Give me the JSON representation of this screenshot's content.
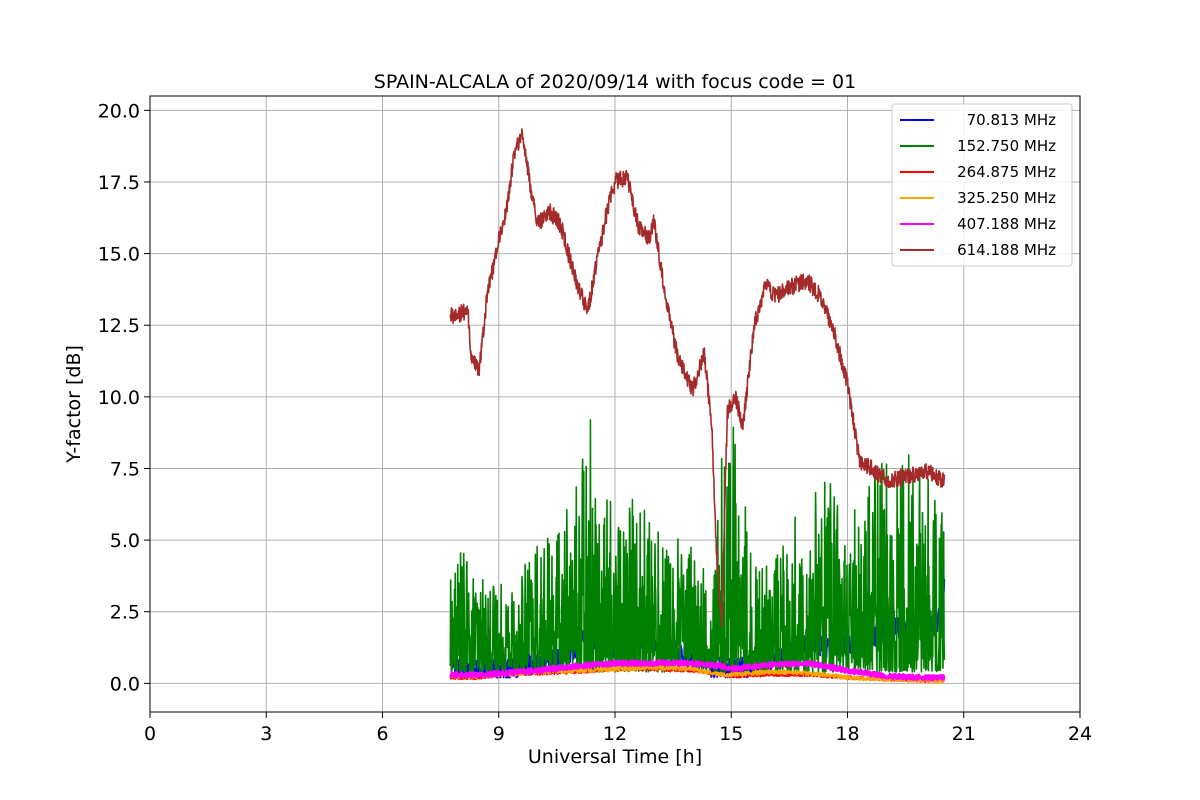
{
  "chart_data": {
    "type": "line",
    "title": "SPAIN-ALCALA of 2020/09/14 with focus code = 01",
    "xlabel": "Universal Time [h]",
    "ylabel": "Y-factor [dB]",
    "xlim": [
      0,
      24
    ],
    "ylim": [
      -1.0,
      20.5
    ],
    "xticks": [
      "0",
      "3",
      "6",
      "9",
      "12",
      "15",
      "18",
      "21",
      "24"
    ],
    "xtick_values": [
      0,
      3,
      6,
      9,
      12,
      15,
      18,
      21,
      24
    ],
    "yticks": [
      "0.0",
      "2.5",
      "5.0",
      "7.5",
      "10.0",
      "12.5",
      "15.0",
      "17.5",
      "20.0"
    ],
    "ytick_values": [
      0,
      2.5,
      5,
      7.5,
      10,
      12.5,
      15,
      17.5,
      20
    ],
    "grid": true,
    "legend_position": "top-right",
    "series": [
      {
        "name": "70.813 MHz",
        "color": "#0000ff",
        "x": [
          7.75,
          8.0,
          8.5,
          9.0,
          9.5,
          10.0,
          10.5,
          11.0,
          11.3,
          11.5,
          12.0,
          12.5,
          13.0,
          13.5,
          14.0,
          14.5,
          15.0,
          15.5,
          16.0,
          16.5,
          17.0,
          17.5,
          18.0,
          18.5,
          19.0,
          19.5,
          20.0,
          20.3,
          20.5
        ],
        "y": [
          1.0,
          0.5,
          0.4,
          0.5,
          0.6,
          0.7,
          0.8,
          1.2,
          2.0,
          1.5,
          1.2,
          1.8,
          1.3,
          1.1,
          0.9,
          0.6,
          0.5,
          0.6,
          0.8,
          1.0,
          1.5,
          1.2,
          1.3,
          1.6,
          1.8,
          2.0,
          2.2,
          2.0,
          3.5
        ],
        "noise": 0.4
      },
      {
        "name": "152.750 MHz",
        "color": "#008000",
        "x": [
          7.75,
          8.0,
          8.5,
          9.0,
          9.5,
          10.0,
          10.5,
          11.0,
          11.3,
          11.5,
          12.0,
          12.5,
          13.0,
          13.5,
          14.0,
          14.5,
          14.9,
          15.2,
          15.5,
          16.0,
          16.5,
          17.0,
          17.5,
          18.0,
          18.5,
          19.0,
          19.5,
          20.0,
          20.5
        ],
        "y": [
          1.5,
          2.0,
          1.5,
          1.5,
          1.7,
          2.0,
          2.3,
          3.0,
          4.5,
          3.2,
          2.8,
          3.0,
          2.5,
          2.3,
          2.0,
          1.5,
          4.5,
          3.5,
          2.0,
          1.8,
          2.3,
          3.0,
          3.5,
          2.5,
          3.0,
          3.5,
          3.5,
          3.5,
          2.5
        ],
        "noise": 1.6
      },
      {
        "name": "264.875 MHz",
        "color": "#ff0000",
        "x": [
          7.75,
          8.5,
          9.0,
          10.0,
          11.0,
          12.0,
          13.0,
          14.0,
          14.8,
          15.0,
          16.0,
          17.0,
          18.0,
          19.0,
          20.0,
          20.5
        ],
        "y": [
          0.2,
          0.2,
          0.3,
          0.35,
          0.4,
          0.5,
          0.5,
          0.45,
          0.3,
          0.25,
          0.3,
          0.3,
          0.2,
          0.15,
          0.1,
          0.1
        ],
        "noise": 0.06
      },
      {
        "name": "325.250 MHz",
        "color": "#ffa500",
        "x": [
          7.75,
          8.5,
          9.0,
          10.0,
          11.0,
          12.0,
          13.0,
          14.0,
          14.8,
          15.0,
          16.0,
          17.0,
          18.0,
          19.0,
          20.0,
          20.5
        ],
        "y": [
          0.25,
          0.25,
          0.3,
          0.4,
          0.45,
          0.5,
          0.55,
          0.5,
          0.3,
          0.3,
          0.4,
          0.35,
          0.2,
          0.15,
          0.1,
          0.1
        ],
        "noise": 0.08
      },
      {
        "name": "407.188 MHz",
        "color": "#ff00ff",
        "x": [
          7.75,
          8.5,
          9.0,
          10.0,
          11.0,
          12.0,
          13.0,
          14.0,
          14.8,
          15.0,
          16.0,
          17.0,
          18.0,
          18.5,
          19.0,
          20.0,
          20.5
        ],
        "y": [
          0.3,
          0.3,
          0.35,
          0.45,
          0.6,
          0.7,
          0.7,
          0.7,
          0.6,
          0.5,
          0.65,
          0.7,
          0.45,
          0.35,
          0.25,
          0.2,
          0.2
        ],
        "noise": 0.09
      },
      {
        "name": "614.188 MHz",
        "color": "#a52a2a",
        "x": [
          7.75,
          8.0,
          8.2,
          8.3,
          8.5,
          8.7,
          9.0,
          9.2,
          9.4,
          9.6,
          9.8,
          10.0,
          10.3,
          10.6,
          11.0,
          11.3,
          11.5,
          11.8,
          12.0,
          12.3,
          12.6,
          12.9,
          13.0,
          13.3,
          13.6,
          14.0,
          14.3,
          14.5,
          14.6,
          14.75,
          14.9,
          15.1,
          15.3,
          15.6,
          15.9,
          16.1,
          16.5,
          16.8,
          17.0,
          17.3,
          17.6,
          18.0,
          18.3,
          18.6,
          19.0,
          19.5,
          20.0,
          20.5
        ],
        "y": [
          12.8,
          12.9,
          13.0,
          11.2,
          11.0,
          13.5,
          15.5,
          16.5,
          18.5,
          19.2,
          17.5,
          16.0,
          16.5,
          16.0,
          14.0,
          13.0,
          14.5,
          16.5,
          17.5,
          17.7,
          16.0,
          15.5,
          16.2,
          13.5,
          11.5,
          10.2,
          11.5,
          9.0,
          5.0,
          2.0,
          9.5,
          10.0,
          9.0,
          12.5,
          14.0,
          13.5,
          13.8,
          14.0,
          14.0,
          13.5,
          12.5,
          10.5,
          7.8,
          7.5,
          7.1,
          7.2,
          7.4,
          7.1
        ],
        "noise": 0.3
      }
    ]
  }
}
